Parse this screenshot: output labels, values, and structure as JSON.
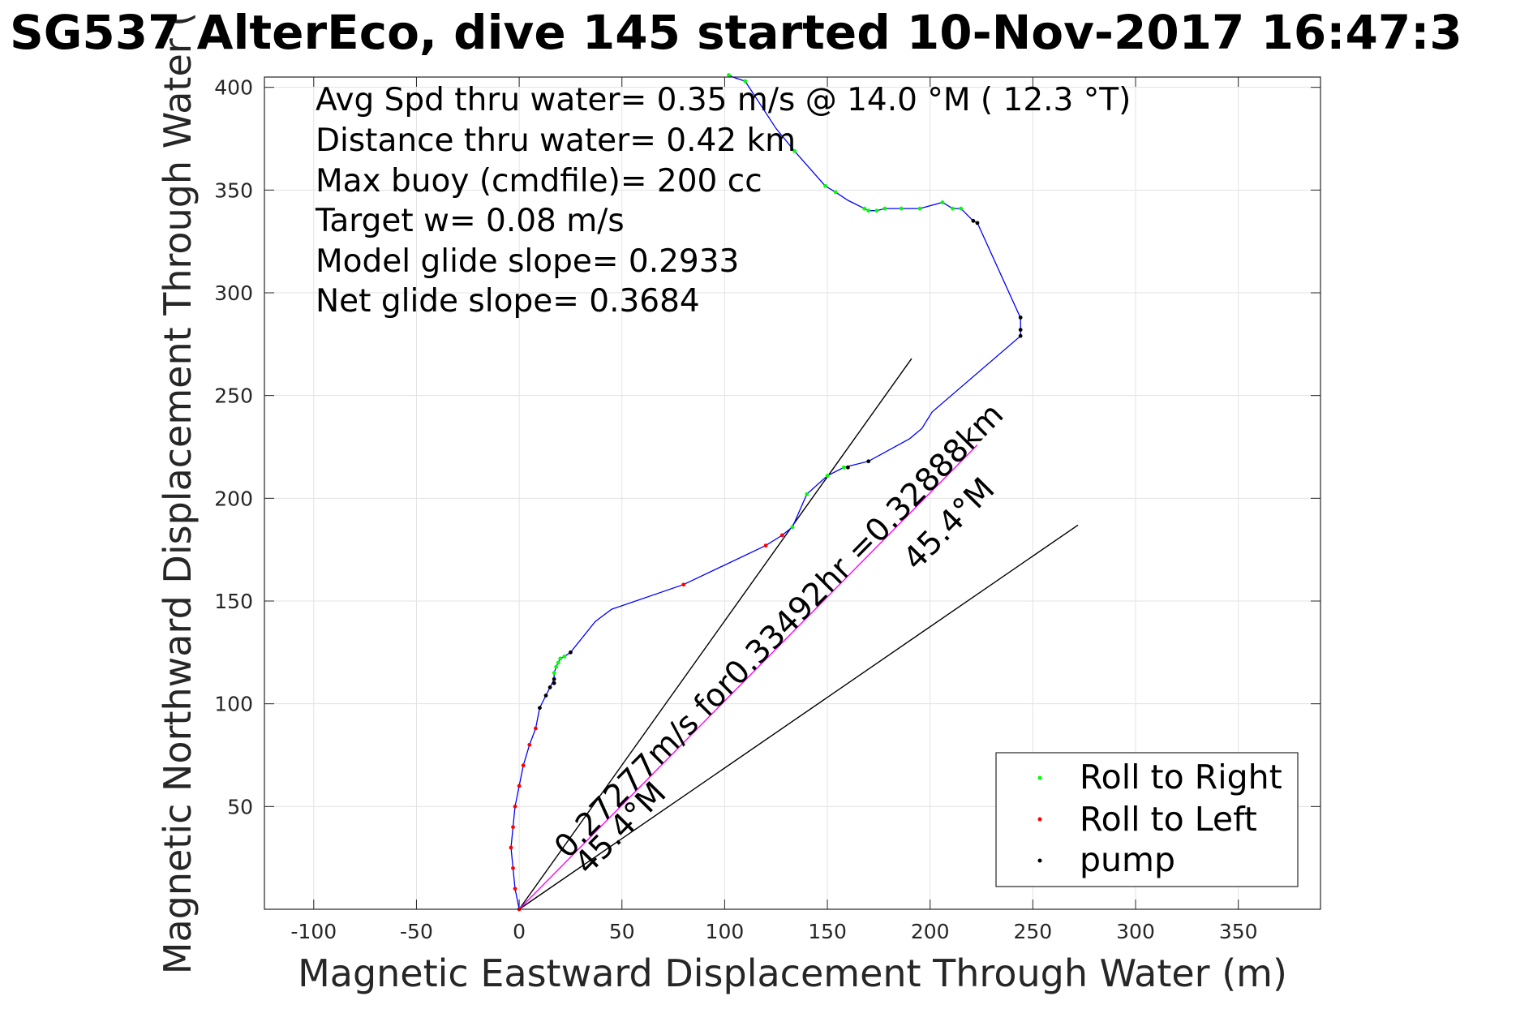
{
  "chart_data": {
    "type": "line",
    "title": "SG537 AlterEco, dive 145 started 10-Nov-2017 16:47:3",
    "xlabel": "Magnetic Eastward Displacement Through Water (m)",
    "ylabel": "Magnetic Northward Displacement Through Water (",
    "xlim": [
      -124,
      390
    ],
    "ylim": [
      0,
      405
    ],
    "xticks": [
      -100,
      -50,
      0,
      50,
      100,
      150,
      200,
      250,
      300,
      350
    ],
    "yticks": [
      50,
      100,
      150,
      200,
      250,
      300,
      350,
      400
    ],
    "grid": true,
    "legend_position": "bottom-right",
    "info_lines": [
      "Avg Spd thru water=  0.35 m/s @  14.0 °M ( 12.3 °T)",
      "Distance thru water=  0.42 km",
      "Max buoy (cmdfile)= 200 cc",
      "Target w= 0.08 m/s",
      "Model glide slope= 0.2933",
      "Net glide slope= 0.3684"
    ],
    "annotations": {
      "speed_text": "0.27277m/s for0.33492hr =0.32888km",
      "heading_upper": "45.4°M",
      "heading_lower": "45.4°M"
    },
    "colors": {
      "track": "#0000ff",
      "roll_right": "#00ff00",
      "roll_left": "#ff0000",
      "pump": "#000000",
      "net_line": "#ff00ff",
      "heading_lines": "#000000"
    },
    "track": {
      "x": [
        0,
        -2,
        -3,
        -4,
        -3,
        -2,
        0,
        2,
        5,
        8,
        10,
        13,
        15,
        17,
        17,
        18,
        19,
        20,
        22,
        25,
        37,
        45,
        80,
        120,
        128,
        133,
        140,
        150,
        158,
        170,
        190,
        196,
        201,
        244,
        244,
        244,
        243,
        223,
        221,
        215,
        211,
        206,
        195,
        186,
        178,
        174,
        170,
        168,
        160,
        154,
        149,
        134,
        125,
        110,
        104,
        102
      ],
      "y": [
        0,
        10,
        20,
        30,
        40,
        50,
        60,
        70,
        80,
        88,
        98,
        104,
        108,
        112,
        115,
        118,
        120,
        122,
        123,
        125,
        140,
        146,
        158,
        177,
        182,
        186,
        202,
        211,
        215,
        218,
        229,
        234,
        242,
        279,
        282,
        288,
        290,
        334,
        335,
        341,
        341,
        344,
        341,
        341,
        341,
        340,
        340,
        341,
        345,
        349,
        352,
        369,
        380,
        403,
        405,
        406
      ]
    },
    "series": [
      {
        "name": "Roll to Right",
        "marker": "dot",
        "color": "#00ff00",
        "x": [
          17,
          18,
          19,
          20,
          22,
          133,
          140,
          150,
          158,
          168,
          170,
          174,
          178,
          186,
          195,
          206,
          211,
          215,
          149,
          154,
          134,
          110,
          102
        ],
        "y": [
          115,
          118,
          120,
          122,
          123,
          186,
          202,
          211,
          215,
          341,
          340,
          340,
          341,
          341,
          341,
          344,
          341,
          341,
          352,
          349,
          369,
          403,
          406
        ]
      },
      {
        "name": "Roll to Left",
        "marker": "dot",
        "color": "#ff0000",
        "x": [
          0,
          -2,
          -3,
          -4,
          -3,
          -2,
          0,
          2,
          5,
          8,
          80,
          120,
          128
        ],
        "y": [
          0,
          10,
          20,
          30,
          40,
          50,
          60,
          70,
          80,
          88,
          158,
          177,
          182
        ]
      },
      {
        "name": "pump",
        "marker": "dot",
        "color": "#000000",
        "x": [
          10,
          13,
          15,
          17,
          17,
          25,
          160,
          170,
          221,
          223,
          244,
          244,
          244
        ],
        "y": [
          98,
          104,
          108,
          110,
          112,
          125,
          215,
          218,
          335,
          334,
          279,
          282,
          288
        ]
      }
    ],
    "net_line": {
      "x": [
        0,
        223
      ],
      "y": [
        0,
        226
      ]
    },
    "heading_lines": [
      {
        "x": [
          0,
          191
        ],
        "y": [
          0,
          268
        ]
      },
      {
        "x": [
          0,
          272
        ],
        "y": [
          0,
          187
        ]
      }
    ]
  }
}
